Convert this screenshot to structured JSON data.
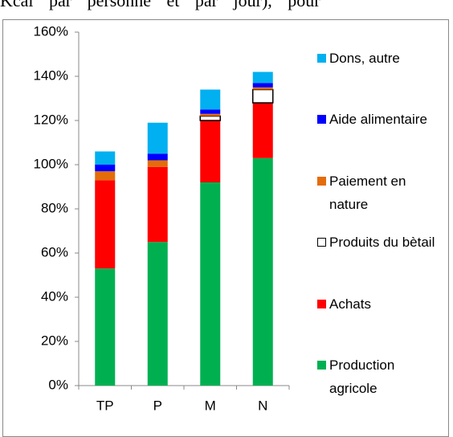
{
  "caption": "Kcal par personne et par jour), pour",
  "chart_data": {
    "type": "stacked-bar",
    "categories": [
      "TP",
      "P",
      "M",
      "N"
    ],
    "series": [
      {
        "name": "Production agricole",
        "color": "#00b050",
        "values": [
          53,
          65,
          92,
          103
        ]
      },
      {
        "name": "Achats",
        "color": "#ff0000",
        "values": [
          40,
          34,
          28,
          25
        ]
      },
      {
        "name": "Produits du bètail",
        "color": "#ffffff",
        "values": [
          0,
          0,
          2,
          6
        ]
      },
      {
        "name": "Paiement en nature",
        "color": "#e46c0a",
        "values": [
          4,
          3,
          1,
          1
        ]
      },
      {
        "name": "Aide alimentaire",
        "color": "#0000ff",
        "values": [
          3,
          3,
          2,
          2
        ]
      },
      {
        "name": "Dons, autre",
        "color": "#00b0f0",
        "values": [
          6,
          14,
          9,
          5
        ]
      }
    ],
    "ylim": [
      0,
      160
    ],
    "yticks": [
      {
        "value": 0,
        "label": "0%"
      },
      {
        "value": 20,
        "label": "20%"
      },
      {
        "value": 40,
        "label": "40%"
      },
      {
        "value": 60,
        "label": "60%"
      },
      {
        "value": 80,
        "label": "80%"
      },
      {
        "value": 100,
        "label": "100%"
      },
      {
        "value": 120,
        "label": "120%"
      },
      {
        "value": 140,
        "label": "140%"
      },
      {
        "value": 160,
        "label": "160%"
      }
    ]
  }
}
